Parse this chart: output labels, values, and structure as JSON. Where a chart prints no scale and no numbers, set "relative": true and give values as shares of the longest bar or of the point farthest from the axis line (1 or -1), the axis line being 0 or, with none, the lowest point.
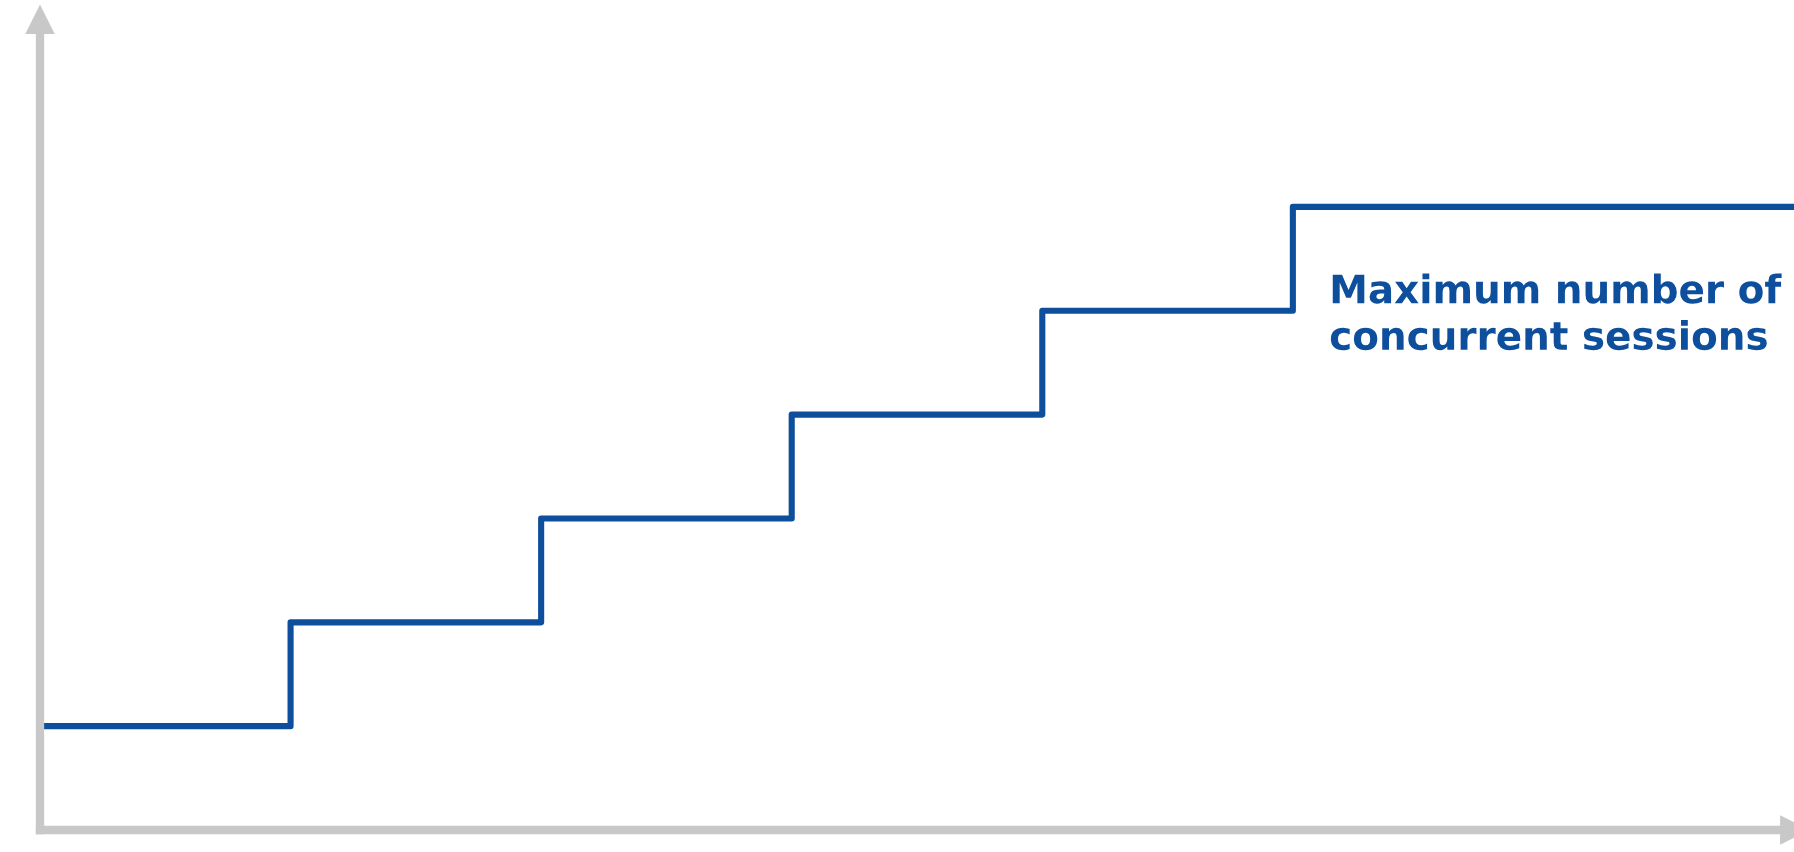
{
  "chart_data": {
    "type": "step",
    "relative": true,
    "categories": [
      null,
      null,
      null,
      null,
      null,
      null,
      null,
      null
    ],
    "series": [
      {
        "color": "#0d4f9c",
        "values": [
          0.1667,
          0.3333,
          0.5,
          0.6667,
          0.8333,
          1,
          1,
          1
        ]
      }
    ],
    "annotations": [
      "Maximum number of\nconcurrent sessions"
    ],
    "legend": false,
    "tick_labels": false,
    "marker": "none",
    "line_style": "solid"
  }
}
